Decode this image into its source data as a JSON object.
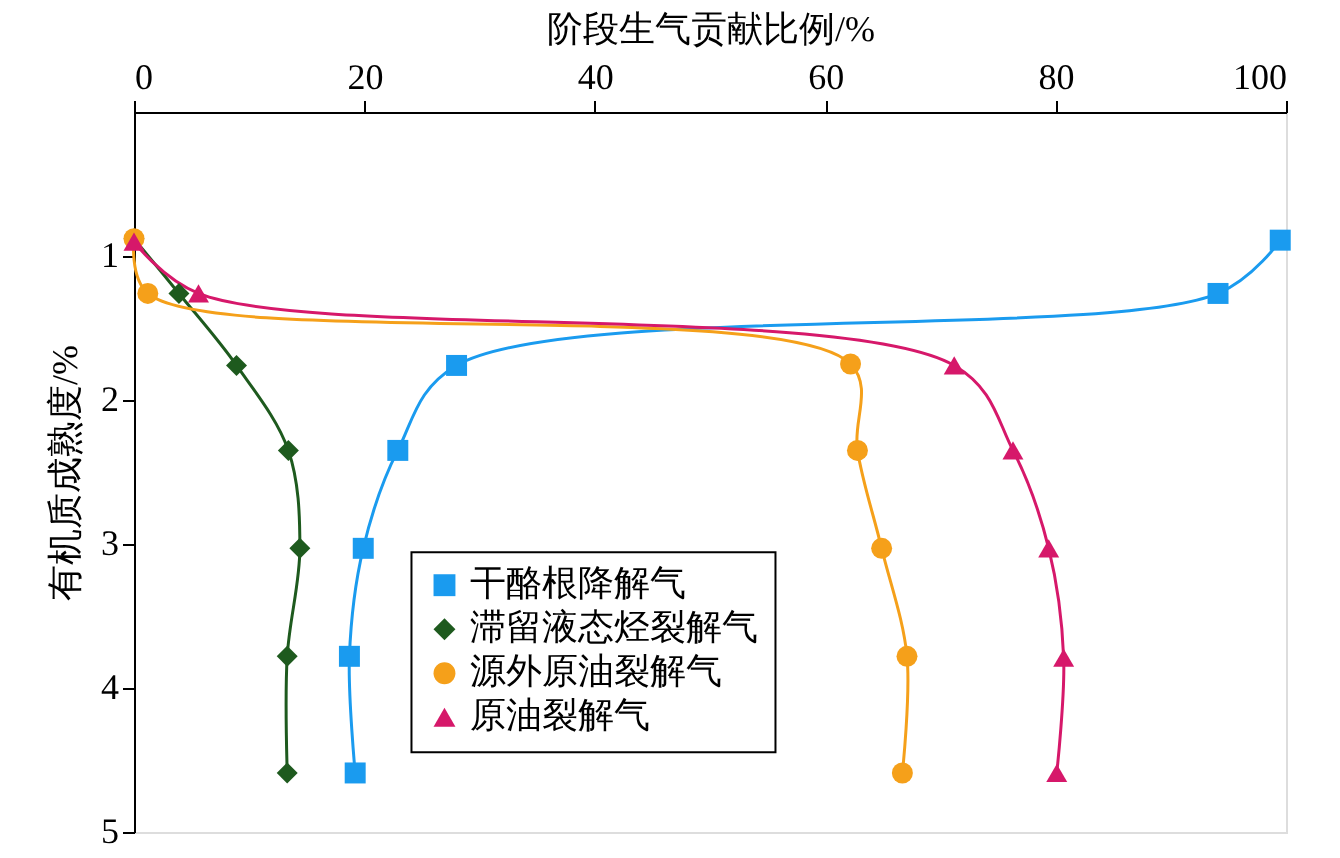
{
  "chart_data": {
    "type": "line",
    "xlabel": "阶段生气贡献比例/%",
    "ylabel": "有机质成熟度/%",
    "xlim": [
      0,
      100
    ],
    "xticks": [
      0,
      20,
      40,
      60,
      80,
      100
    ],
    "ylim": [
      5,
      0
    ],
    "yticks": [
      1,
      2,
      3,
      4,
      5
    ],
    "grid": false,
    "legend": "bottom",
    "line_style": "solid",
    "series": [
      {
        "name": "干酪根降解气",
        "color": "#1a9bef",
        "marker": "square",
        "x": [
          99.5,
          94.1,
          28.0,
          22.9,
          19.9,
          18.7,
          19.2
        ],
        "values": [
          0.89,
          1.26,
          1.76,
          2.35,
          3.03,
          3.78,
          4.59
        ]
      },
      {
        "name": "滞留液态烃裂解气",
        "color": "#1e5a1e",
        "marker": "diamond",
        "x": [
          0,
          3.9,
          8.9,
          13.4,
          14.4,
          13.3,
          13.3
        ],
        "values": [
          0.88,
          1.26,
          1.76,
          2.35,
          3.03,
          3.78,
          4.59
        ]
      },
      {
        "name": "源外原油裂解气",
        "color": "#f5a01a",
        "marker": "circle",
        "x": [
          0,
          1.2,
          62.2,
          62.8,
          64.9,
          67.1,
          66.7
        ],
        "values": [
          0.88,
          1.26,
          1.75,
          2.35,
          3.03,
          3.78,
          4.59
        ]
      },
      {
        "name": "原油裂解气",
        "color": "#d6186a",
        "marker": "triangle",
        "x": [
          0,
          5.6,
          71.2,
          76.3,
          79.4,
          80.7,
          80.1
        ],
        "values": [
          0.9,
          1.26,
          1.76,
          2.35,
          3.03,
          3.79,
          4.59
        ]
      }
    ]
  }
}
